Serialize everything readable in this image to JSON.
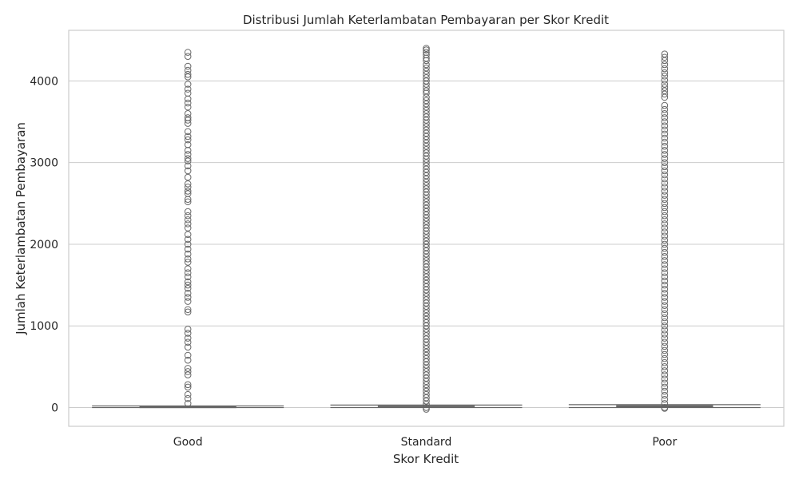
{
  "chart_data": {
    "type": "box",
    "title": "Distribusi Jumlah Keterlambatan Pembayaran per Skor Kredit",
    "xlabel": "Skor Kredit",
    "ylabel": "Jumlah Keterlambatan Pembayaran",
    "categories": [
      "Good",
      "Standard",
      "Poor"
    ],
    "ylim": [
      -230,
      4620
    ],
    "yticks": [
      0,
      1000,
      2000,
      3000,
      4000
    ],
    "ytick_labels": [
      "0",
      "1000",
      "2000",
      "3000",
      "4000"
    ],
    "grid": true,
    "colors": {
      "background": "#ffffff",
      "frame": "#cccccc",
      "grid": "#cccccc",
      "box_edge": "#666666",
      "text": "#262626"
    },
    "boxes": [
      {
        "category": "Good",
        "stats": {
          "whisker_low": 0,
          "q1": 3,
          "median": 8,
          "q3": 14,
          "whisker_high": 20
        },
        "outliers": [
          4350,
          4300,
          4180,
          4130,
          4080,
          4050,
          3960,
          3900,
          3850,
          3780,
          3730,
          3680,
          3600,
          3550,
          3520,
          3480,
          3380,
          3320,
          3280,
          3220,
          3150,
          3100,
          3050,
          3020,
          2960,
          2900,
          2820,
          2740,
          2700,
          2650,
          2620,
          2550,
          2520,
          2400,
          2350,
          2300,
          2250,
          2200,
          2120,
          2060,
          2000,
          1940,
          1880,
          1820,
          1780,
          1700,
          1650,
          1600,
          1540,
          1500,
          1460,
          1400,
          1350,
          1300,
          1200,
          1170,
          960,
          910,
          850,
          800,
          740,
          640,
          580,
          480,
          440,
          400,
          280,
          250,
          160,
          110,
          50
        ]
      },
      {
        "category": "Standard",
        "stats": {
          "whisker_low": 0,
          "q1": 5,
          "median": 10,
          "q3": 17,
          "whisker_high": 30
        },
        "outliers": [
          4400,
          4380,
          4350,
          4320,
          4280,
          4250,
          4200,
          4160,
          4120,
          4080,
          4040,
          4000,
          3960,
          3920,
          3880,
          3850,
          3800,
          3760,
          3720,
          3680,
          3640,
          3600,
          3560,
          3520,
          3480,
          3440,
          3400,
          3360,
          3320,
          3280,
          3240,
          3200,
          3160,
          3120,
          3080,
          3040,
          3000,
          2960,
          2920,
          2880,
          2840,
          2800,
          2760,
          2720,
          2680,
          2640,
          2600,
          2560,
          2520,
          2480,
          2440,
          2400,
          2360,
          2320,
          2280,
          2240,
          2200,
          2160,
          2120,
          2080,
          2040,
          2000,
          1960,
          1920,
          1880,
          1840,
          1800,
          1760,
          1720,
          1680,
          1640,
          1600,
          1560,
          1520,
          1480,
          1440,
          1400,
          1360,
          1320,
          1280,
          1240,
          1200,
          1160,
          1120,
          1080,
          1040,
          1000,
          960,
          920,
          880,
          840,
          800,
          760,
          720,
          680,
          640,
          600,
          560,
          520,
          480,
          440,
          400,
          360,
          320,
          280,
          240,
          200,
          160,
          120,
          80,
          40,
          0,
          -20
        ]
      },
      {
        "category": "Poor",
        "stats": {
          "whisker_low": 0,
          "q1": 8,
          "median": 15,
          "q3": 22,
          "whisker_high": 35
        },
        "outliers": [
          4330,
          4290,
          4250,
          4200,
          4150,
          4100,
          4060,
          4010,
          3960,
          3920,
          3880,
          3840,
          3800,
          3700,
          3650,
          3600,
          3550,
          3500,
          3450,
          3400,
          3350,
          3300,
          3250,
          3200,
          3150,
          3100,
          3050,
          3000,
          2950,
          2900,
          2850,
          2800,
          2750,
          2700,
          2650,
          2600,
          2550,
          2500,
          2450,
          2400,
          2350,
          2300,
          2250,
          2200,
          2150,
          2100,
          2050,
          2000,
          1950,
          1900,
          1850,
          1800,
          1750,
          1700,
          1650,
          1600,
          1550,
          1500,
          1450,
          1400,
          1350,
          1300,
          1250,
          1200,
          1150,
          1100,
          1050,
          1000,
          950,
          900,
          850,
          800,
          750,
          700,
          650,
          600,
          550,
          500,
          450,
          400,
          350,
          300,
          250,
          200,
          150,
          100,
          50,
          0,
          -10
        ]
      }
    ]
  }
}
